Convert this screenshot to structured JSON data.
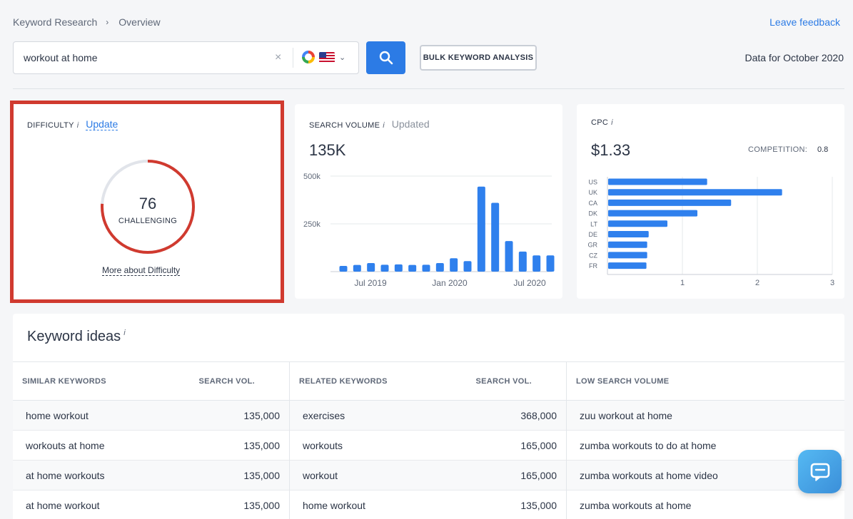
{
  "breadcrumb": {
    "items": [
      "Keyword Research",
      "Overview"
    ],
    "separator": "›"
  },
  "header": {
    "feedback": "Leave feedback",
    "data_for": "Data for October 2020"
  },
  "search": {
    "value": "workout at home",
    "clear": "×",
    "engine_icon": "google-icon",
    "country_icon": "us-flag-icon",
    "bulk_label": "BULK KEYWORD ANALYSIS"
  },
  "colors": {
    "accent": "#2c7be5",
    "difficulty_red": "#d03a2f",
    "bar_blue": "#2f80ed"
  },
  "difficulty": {
    "title": "DIFFICULTY",
    "info": "i",
    "update": "Update",
    "value": "76",
    "label": "CHALLENGING",
    "score": 76,
    "max": 100,
    "more": "More about Difficulty"
  },
  "volume": {
    "title": "SEARCH VOLUME",
    "info": "i",
    "updated": "Updated",
    "value": "135K"
  },
  "cpc": {
    "title": "CPC",
    "info": "i",
    "value": "$1.33",
    "competition_label": "COMPETITION:",
    "competition_value": "0.8"
  },
  "chart_data": [
    {
      "type": "bar",
      "title": "SEARCH VOLUME",
      "x_ticks": [
        "Jul 2019",
        "Jan 2020",
        "Jul 2020"
      ],
      "y_ticks": [
        "500k",
        "250k"
      ],
      "ylim": [
        0,
        500000
      ],
      "values": [
        30000,
        35000,
        45000,
        36000,
        38000,
        35000,
        36000,
        45000,
        70000,
        55000,
        445000,
        360000,
        160000,
        105000,
        85000,
        85000
      ],
      "grid": true
    },
    {
      "type": "bar",
      "title": "CPC",
      "orientation": "horizontal",
      "categories": [
        "US",
        "UK",
        "CA",
        "DK",
        "LT",
        "DE",
        "GR",
        "CZ",
        "FR"
      ],
      "values": [
        1.33,
        2.33,
        1.65,
        1.2,
        0.8,
        0.55,
        0.53,
        0.53,
        0.52
      ],
      "x_ticks": [
        "1",
        "2",
        "3"
      ],
      "xlim": [
        0,
        3
      ],
      "grid": true
    }
  ],
  "ideas": {
    "title": "Keyword ideas",
    "info": "i",
    "similar": {
      "header": "SIMILAR KEYWORDS",
      "vol_header": "SEARCH VOL.",
      "rows": [
        {
          "kw": "home workout",
          "vol": "135,000"
        },
        {
          "kw": "workouts at home",
          "vol": "135,000"
        },
        {
          "kw": "at home workouts",
          "vol": "135,000"
        },
        {
          "kw": "at home workout",
          "vol": "135,000"
        }
      ]
    },
    "related": {
      "header": "RELATED KEYWORDS",
      "vol_header": "SEARCH VOL.",
      "rows": [
        {
          "kw": "exercises",
          "vol": "368,000"
        },
        {
          "kw": "workouts",
          "vol": "165,000"
        },
        {
          "kw": "workout",
          "vol": "165,000"
        },
        {
          "kw": "home workout",
          "vol": "135,000"
        }
      ]
    },
    "low": {
      "header": "LOW SEARCH VOLUME",
      "rows": [
        {
          "kw": "zuu workout at home"
        },
        {
          "kw": "zumba workouts to do at home"
        },
        {
          "kw": "zumba workouts at home video"
        },
        {
          "kw": "zumba workouts at home"
        }
      ]
    }
  }
}
